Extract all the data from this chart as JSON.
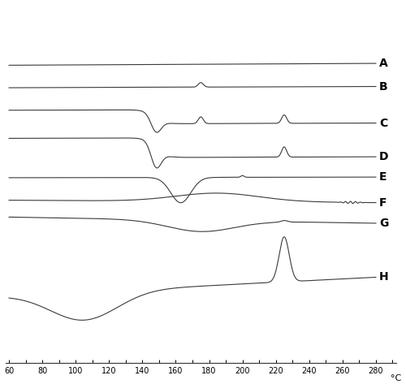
{
  "x_min": 60,
  "x_max": 280,
  "x_ticks": [
    60,
    80,
    100,
    120,
    140,
    160,
    180,
    200,
    220,
    240,
    260,
    280
  ],
  "x_label": "°C",
  "background_color": "#ffffff",
  "line_color": "#3a3a3a",
  "label_color": "#000000",
  "labels": [
    "A",
    "B",
    "C",
    "D",
    "E",
    "F",
    "G",
    "H"
  ],
  "title_fontsize": 11,
  "axis_fontsize": 8,
  "label_fontsize": 10
}
